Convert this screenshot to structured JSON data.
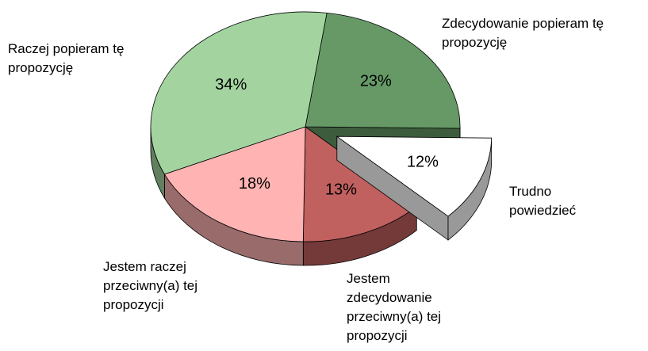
{
  "chart_data": {
    "type": "pie",
    "categories": [
      "Zdecydowanie popieram tę propozycję",
      "Trudno powiedzieć",
      "Jestem zdecydowanie przeciwny(a) tej propozycji",
      "Jestem raczej przeciwny(a) tej propozycji",
      "Raczej popieram tę propozycję"
    ],
    "values": [
      23,
      12,
      13,
      18,
      34
    ],
    "value_labels": [
      "23%",
      "12%",
      "13%",
      "18%",
      "34%"
    ],
    "colors": [
      "#669966",
      "#ffffff",
      "#c0605f",
      "#ffb3b3",
      "#a3d4a0"
    ],
    "explode": [
      false,
      true,
      false,
      false,
      false
    ],
    "three_d": true
  }
}
